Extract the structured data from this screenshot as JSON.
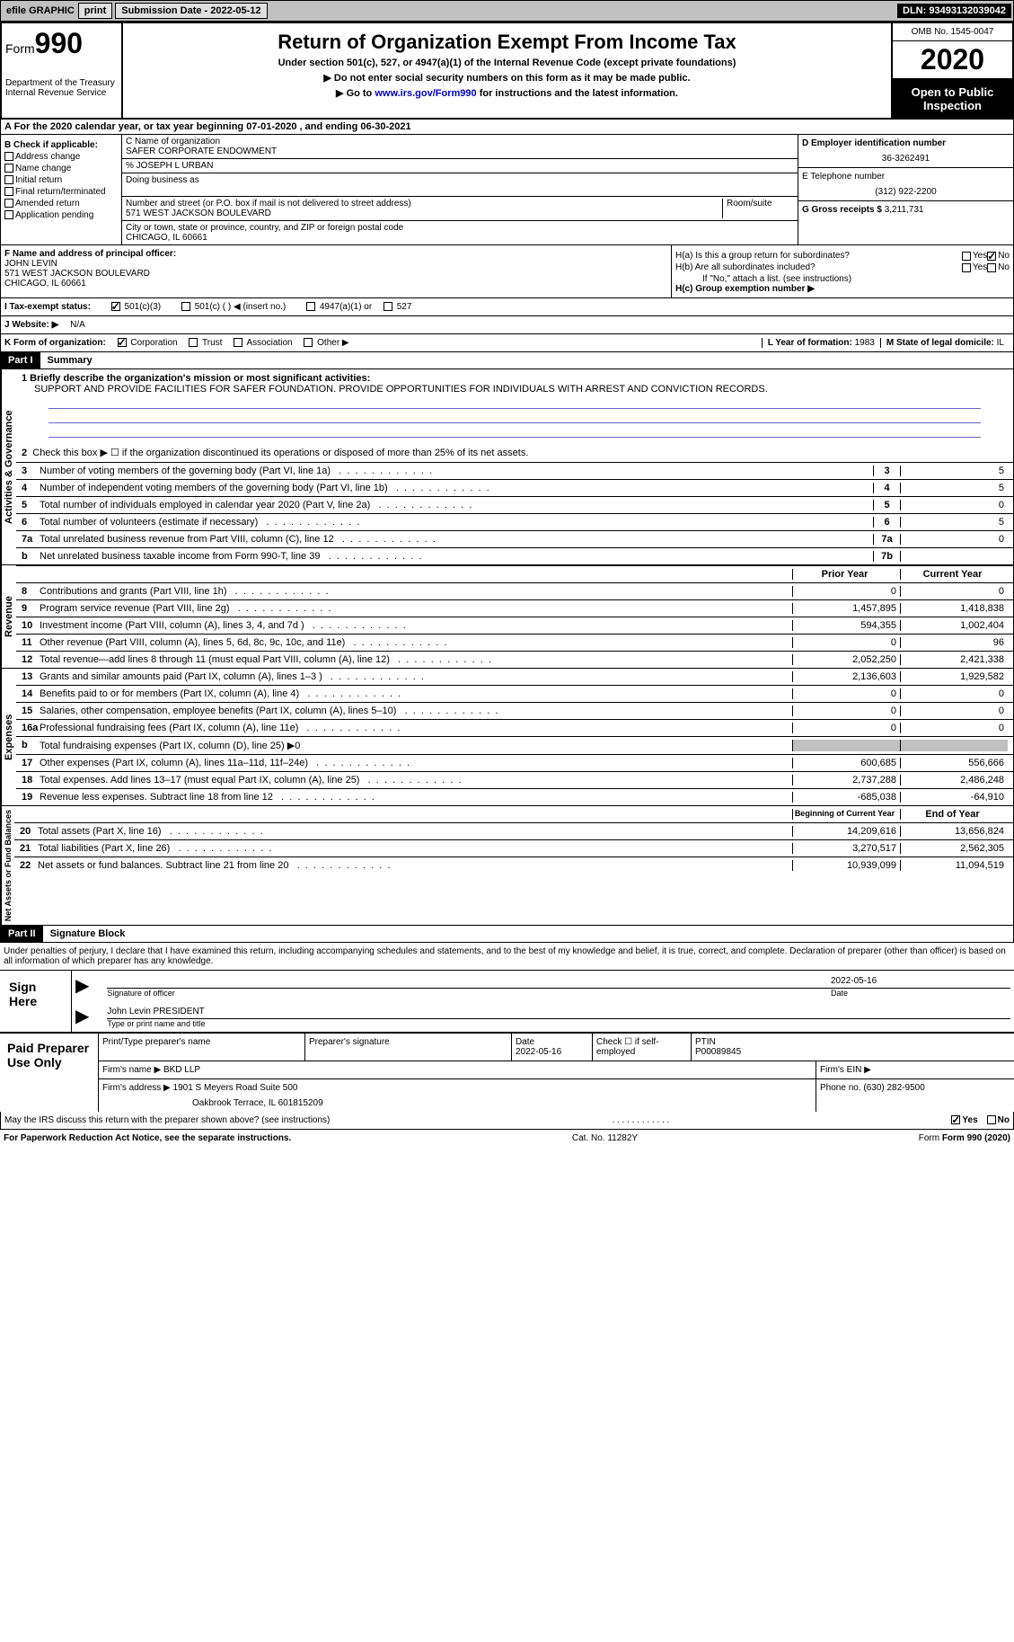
{
  "top_bar": {
    "efile": "efile GRAPHIC",
    "print": "print",
    "submission_label": "Submission Date - 2022-05-12",
    "dln": "DLN: 93493132039042"
  },
  "header": {
    "form_label": "Form",
    "form_num": "990",
    "dept": "Department of the Treasury\nInternal Revenue Service",
    "title": "Return of Organization Exempt From Income Tax",
    "subtitle": "Under section 501(c), 527, or 4947(a)(1) of the Internal Revenue Code (except private foundations)",
    "notice1": "▶ Do not enter social security numbers on this form as it may be made public.",
    "notice2_pre": "▶ Go to ",
    "notice2_link": "www.irs.gov/Form990",
    "notice2_post": " for instructions and the latest information.",
    "omb": "OMB No. 1545-0047",
    "year": "2020",
    "inspection": "Open to Public Inspection"
  },
  "section_a": "A For the 2020 calendar year, or tax year beginning 07-01-2020     , and ending 06-30-2021",
  "col_b": {
    "title": "B Check if applicable:",
    "items": [
      "Address change",
      "Name change",
      "Initial return",
      "Final return/terminated",
      "Amended return",
      "Application pending"
    ]
  },
  "col_c": {
    "name_label": "C Name of organization",
    "name": "SAFER CORPORATE ENDOWMENT",
    "care_of": "% JOSEPH L URBAN",
    "dba_label": "Doing business as",
    "street_label": "Number and street (or P.O. box if mail is not delivered to street address)",
    "room_label": "Room/suite",
    "street": "571 WEST JACKSON BOULEVARD",
    "city_label": "City or town, state or province, country, and ZIP or foreign postal code",
    "city": "CHICAGO, IL  60661"
  },
  "col_d": {
    "ein_label": "D Employer identification number",
    "ein": "36-3262491",
    "phone_label": "E Telephone number",
    "phone": "(312) 922-2200",
    "gross_label": "G Gross receipts $ ",
    "gross": "3,211,731"
  },
  "section_f": {
    "label": "F  Name and address of principal officer:",
    "name": "JOHN LEVIN",
    "addr1": "571 WEST JACKSON BOULEVARD",
    "addr2": "CHICAGO, IL  60661"
  },
  "section_h": {
    "ha": "H(a)  Is this a group return for subordinates?",
    "ha_no": "No",
    "hb": "H(b)  Are all subordinates included?",
    "hb_note": "If \"No,\" attach a list. (see instructions)",
    "hc": "H(c)  Group exemption number ▶"
  },
  "tax_status_row": {
    "i_label": "I   Tax-exempt status:",
    "opt1": "501(c)(3)",
    "opt2": "501(c) (   ) ◀ (insert no.)",
    "opt3": "4947(a)(1) or",
    "opt4": "527"
  },
  "website": {
    "label": "J   Website: ▶",
    "val": "N/A"
  },
  "section_k": {
    "label": "K Form of organization:",
    "corp": "Corporation",
    "trust": "Trust",
    "assoc": "Association",
    "other": "Other ▶",
    "l_label": "L Year of formation: ",
    "l_val": "1983",
    "m_label": "M State of legal domicile: ",
    "m_val": "IL"
  },
  "part1": {
    "header": "Part I",
    "title": "Summary",
    "line1_label": "1  Briefly describe the organization's mission or most significant activities:",
    "line1_text": "SUPPORT AND PROVIDE FACILITIES FOR SAFER FOUNDATION. PROVIDE OPPORTUNITIES FOR INDIVIDUALS WITH ARREST AND CONVICTION RECORDS.",
    "line2": "Check this box ▶ ☐  if the organization discontinued its operations or disposed of more than 25% of its net assets.",
    "governance_label": "Activities & Governance",
    "revenue_label": "Revenue",
    "expenses_label": "Expenses",
    "netassets_label": "Net Assets or Fund Balances",
    "lines_gov": [
      {
        "n": "3",
        "t": "Number of voting members of the governing body (Part VI, line 1a)",
        "box": "3",
        "v": "5"
      },
      {
        "n": "4",
        "t": "Number of independent voting members of the governing body (Part VI, line 1b)",
        "box": "4",
        "v": "5"
      },
      {
        "n": "5",
        "t": "Total number of individuals employed in calendar year 2020 (Part V, line 2a)",
        "box": "5",
        "v": "0"
      },
      {
        "n": "6",
        "t": "Total number of volunteers (estimate if necessary)",
        "box": "6",
        "v": "5"
      },
      {
        "n": "7a",
        "t": "Total unrelated business revenue from Part VIII, column (C), line 12",
        "box": "7a",
        "v": "0"
      },
      {
        "n": "b",
        "t": "Net unrelated business taxable income from Form 990-T, line 39",
        "box": "7b",
        "v": ""
      }
    ],
    "prior_year": "Prior Year",
    "current_year": "Current Year",
    "lines_rev": [
      {
        "n": "8",
        "t": "Contributions and grants (Part VIII, line 1h)",
        "py": "0",
        "cy": "0"
      },
      {
        "n": "9",
        "t": "Program service revenue (Part VIII, line 2g)",
        "py": "1,457,895",
        "cy": "1,418,838"
      },
      {
        "n": "10",
        "t": "Investment income (Part VIII, column (A), lines 3, 4, and 7d )",
        "py": "594,355",
        "cy": "1,002,404"
      },
      {
        "n": "11",
        "t": "Other revenue (Part VIII, column (A), lines 5, 6d, 8c, 9c, 10c, and 11e)",
        "py": "0",
        "cy": "96"
      },
      {
        "n": "12",
        "t": "Total revenue—add lines 8 through 11 (must equal Part VIII, column (A), line 12)",
        "py": "2,052,250",
        "cy": "2,421,338"
      }
    ],
    "lines_exp": [
      {
        "n": "13",
        "t": "Grants and similar amounts paid (Part IX, column (A), lines 1–3 )",
        "py": "2,136,603",
        "cy": "1,929,582"
      },
      {
        "n": "14",
        "t": "Benefits paid to or for members (Part IX, column (A), line 4)",
        "py": "0",
        "cy": "0"
      },
      {
        "n": "15",
        "t": "Salaries, other compensation, employee benefits (Part IX, column (A), lines 5–10)",
        "py": "0",
        "cy": "0"
      },
      {
        "n": "16a",
        "t": "Professional fundraising fees (Part IX, column (A), line 11e)",
        "py": "0",
        "cy": "0"
      },
      {
        "n": "b",
        "t": "Total fundraising expenses (Part IX, column (D), line 25) ▶0",
        "py": "",
        "cy": "",
        "shaded": true
      },
      {
        "n": "17",
        "t": "Other expenses (Part IX, column (A), lines 11a–11d, 11f–24e)",
        "py": "600,685",
        "cy": "556,666"
      },
      {
        "n": "18",
        "t": "Total expenses. Add lines 13–17 (must equal Part IX, column (A), line 25)",
        "py": "2,737,288",
        "cy": "2,486,248"
      },
      {
        "n": "19",
        "t": "Revenue less expenses. Subtract line 18 from line 12",
        "py": "-685,038",
        "cy": "-64,910"
      }
    ],
    "beg_year": "Beginning of Current Year",
    "end_year": "End of Year",
    "lines_net": [
      {
        "n": "20",
        "t": "Total assets (Part X, line 16)",
        "py": "14,209,616",
        "cy": "13,656,824"
      },
      {
        "n": "21",
        "t": "Total liabilities (Part X, line 26)",
        "py": "3,270,517",
        "cy": "2,562,305"
      },
      {
        "n": "22",
        "t": "Net assets or fund balances. Subtract line 21 from line 20",
        "py": "10,939,099",
        "cy": "11,094,519"
      }
    ]
  },
  "part2": {
    "header": "Part II",
    "title": "Signature Block",
    "declaration": "Under penalties of perjury, I declare that I have examined this return, including accompanying schedules and statements, and to the best of my knowledge and belief, it is true, correct, and complete. Declaration of preparer (other than officer) is based on all information of which preparer has any knowledge.",
    "sign_here": "Sign Here",
    "sig_officer": "Signature of officer",
    "sig_date": "2022-05-16",
    "date_label": "Date",
    "officer_name": "John Levin PRESIDENT",
    "type_label": "Type or print name and title",
    "paid_label": "Paid Preparer Use Only",
    "prep_name_label": "Print/Type preparer's name",
    "prep_sig_label": "Preparer's signature",
    "prep_date_label": "Date",
    "prep_date": "2022-05-16",
    "check_label": "Check ☐ if self-employed",
    "ptin_label": "PTIN",
    "ptin": "P00089845",
    "firm_name_label": "Firm's name     ▶",
    "firm_name": "BKD LLP",
    "firm_ein_label": "Firm's EIN ▶",
    "firm_addr_label": "Firm's address ▶",
    "firm_addr": "1901 S Meyers Road Suite 500",
    "firm_addr2": "Oakbrook Terrace, IL  601815209",
    "phone_label": "Phone no. ",
    "phone": "(630) 282-9500",
    "discuss": "May the IRS discuss this return with the preparer shown above? (see instructions)",
    "yes": "Yes",
    "no": "No"
  },
  "footer": {
    "left": "For Paperwork Reduction Act Notice, see the separate instructions.",
    "mid": "Cat. No. 11282Y",
    "right": "Form 990 (2020)"
  }
}
